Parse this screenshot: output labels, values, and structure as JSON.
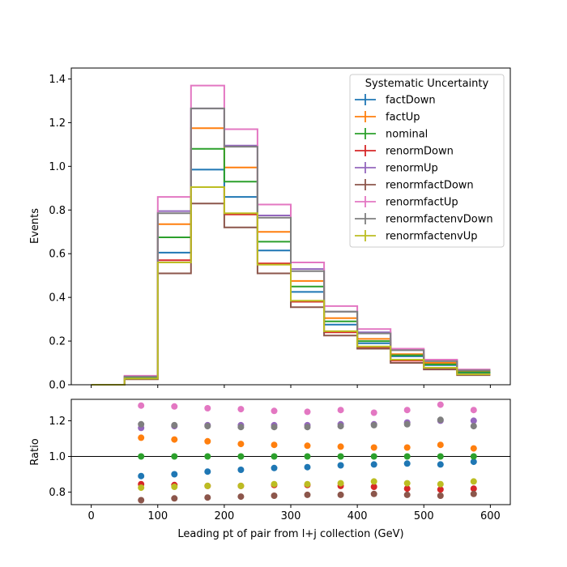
{
  "chart_data": [
    {
      "type": "step",
      "panel": "main",
      "xlabel": "",
      "ylabel": "Events",
      "xlim": [
        -30,
        630
      ],
      "ylim": [
        0,
        1.45
      ],
      "yticks": [
        0.0,
        0.2,
        0.4,
        0.6,
        0.8,
        1.0,
        1.2,
        1.4
      ],
      "ytick_labels": [
        "0.0",
        "0.2",
        "0.4",
        "0.6",
        "0.8",
        "1.0",
        "1.2",
        "1.4"
      ],
      "xticks": [
        0,
        100,
        200,
        300,
        400,
        500,
        600
      ],
      "bin_edges": [
        0,
        50,
        100,
        150,
        200,
        250,
        300,
        350,
        400,
        450,
        500,
        550,
        600
      ],
      "legend": {
        "title": "Systematic Uncertainty",
        "placement": "top-right"
      },
      "series": [
        {
          "name": "factDown",
          "color": "#1f77b4",
          "values": [
            0.0,
            0.03,
            0.605,
            0.985,
            0.86,
            0.615,
            0.425,
            0.275,
            0.19,
            0.13,
            0.09,
            0.055
          ]
        },
        {
          "name": "factUp",
          "color": "#ff7f0e",
          "values": [
            0.0,
            0.035,
            0.735,
            1.175,
            0.995,
            0.7,
            0.475,
            0.305,
            0.21,
            0.14,
            0.1,
            0.06
          ]
        },
        {
          "name": "nominal",
          "color": "#2ca02c",
          "values": [
            0.0,
            0.032,
            0.675,
            1.08,
            0.93,
            0.655,
            0.45,
            0.29,
            0.2,
            0.135,
            0.093,
            0.057
          ]
        },
        {
          "name": "renormDown",
          "color": "#d62728",
          "values": [
            0.0,
            0.027,
            0.57,
            0.905,
            0.78,
            0.555,
            0.38,
            0.24,
            0.17,
            0.11,
            0.075,
            0.047
          ]
        },
        {
          "name": "renormUp",
          "color": "#9467bd",
          "values": [
            0.0,
            0.038,
            0.795,
            1.265,
            1.095,
            0.775,
            0.53,
            0.335,
            0.24,
            0.16,
            0.11,
            0.068
          ]
        },
        {
          "name": "renormfactDown",
          "color": "#8c564b",
          "values": [
            0.0,
            0.025,
            0.51,
            0.83,
            0.72,
            0.51,
            0.355,
            0.225,
            0.165,
            0.1,
            0.07,
            0.044
          ]
        },
        {
          "name": "renormfactUp",
          "color": "#e377c2",
          "values": [
            0.0,
            0.041,
            0.86,
            1.37,
            1.17,
            0.825,
            0.56,
            0.36,
            0.255,
            0.165,
            0.115,
            0.07
          ]
        },
        {
          "name": "renormfactenvDown",
          "color": "#7f7f7f",
          "values": [
            0.0,
            0.037,
            0.785,
            1.265,
            1.09,
            0.765,
            0.52,
            0.335,
            0.235,
            0.158,
            0.108,
            0.066
          ]
        },
        {
          "name": "renormfactenvUp",
          "color": "#bcbd22",
          "values": [
            0.0,
            0.028,
            0.56,
            0.905,
            0.785,
            0.55,
            0.385,
            0.245,
            0.175,
            0.115,
            0.078,
            0.048
          ]
        }
      ]
    },
    {
      "type": "scatter",
      "panel": "ratio",
      "xlabel": "Leading pt of pair from l+j collection (GeV)",
      "ylabel": "Ratio",
      "xlim": [
        -30,
        630
      ],
      "ylim": [
        0.73,
        1.32
      ],
      "yticks": [
        0.8,
        1.0,
        1.2
      ],
      "ytick_labels": [
        "0.8",
        "1.0",
        "1.2"
      ],
      "xticks": [
        0,
        100,
        200,
        300,
        400,
        500,
        600
      ],
      "xtick_labels": [
        "0",
        "100",
        "200",
        "300",
        "400",
        "500",
        "600"
      ],
      "reference_line": 1.0,
      "x": [
        75,
        125,
        175,
        225,
        275,
        325,
        375,
        425,
        475,
        525,
        575
      ],
      "series": [
        {
          "name": "factDown",
          "color": "#1f77b4",
          "values": [
            0.89,
            0.9,
            0.915,
            0.925,
            0.935,
            0.94,
            0.95,
            0.955,
            0.96,
            0.955,
            0.97
          ]
        },
        {
          "name": "factUp",
          "color": "#ff7f0e",
          "values": [
            1.105,
            1.095,
            1.085,
            1.07,
            1.065,
            1.06,
            1.055,
            1.05,
            1.05,
            1.065,
            1.045
          ]
        },
        {
          "name": "nominal",
          "color": "#2ca02c",
          "values": [
            1.0,
            1.0,
            1.0,
            1.0,
            1.0,
            1.0,
            1.0,
            1.0,
            1.0,
            1.0,
            1.0
          ]
        },
        {
          "name": "renormDown",
          "color": "#d62728",
          "values": [
            0.845,
            0.84,
            0.835,
            0.835,
            0.84,
            0.84,
            0.835,
            0.83,
            0.82,
            0.815,
            0.82
          ]
        },
        {
          "name": "renormUp",
          "color": "#9467bd",
          "values": [
            1.16,
            1.17,
            1.175,
            1.175,
            1.175,
            1.175,
            1.18,
            1.18,
            1.19,
            1.2,
            1.2
          ]
        },
        {
          "name": "renormfactDown",
          "color": "#8c564b",
          "values": [
            0.755,
            0.765,
            0.77,
            0.775,
            0.78,
            0.785,
            0.785,
            0.79,
            0.785,
            0.78,
            0.79
          ]
        },
        {
          "name": "renormfactUp",
          "color": "#e377c2",
          "values": [
            1.285,
            1.28,
            1.27,
            1.265,
            1.255,
            1.25,
            1.26,
            1.245,
            1.26,
            1.29,
            1.26
          ]
        },
        {
          "name": "renormfactenvDown",
          "color": "#7f7f7f",
          "values": [
            1.18,
            1.175,
            1.17,
            1.165,
            1.165,
            1.165,
            1.17,
            1.175,
            1.18,
            1.205,
            1.17
          ]
        },
        {
          "name": "renormfactenvUp",
          "color": "#bcbd22",
          "values": [
            0.825,
            0.83,
            0.835,
            0.835,
            0.845,
            0.845,
            0.85,
            0.86,
            0.85,
            0.845,
            0.86
          ]
        }
      ]
    }
  ]
}
